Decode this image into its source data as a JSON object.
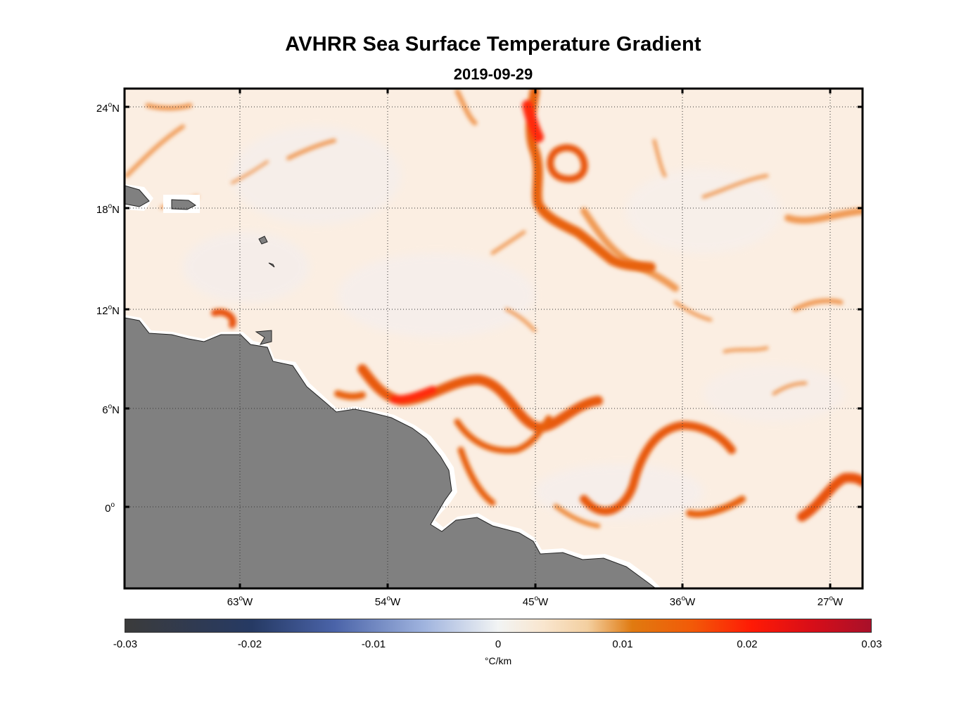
{
  "title": "AVHRR Sea Surface Temperature Gradient",
  "subtitle": "2019-09-29",
  "map": {
    "lon_labels": [
      {
        "value": "63",
        "hemi": "W"
      },
      {
        "value": "54",
        "hemi": "W"
      },
      {
        "value": "45",
        "hemi": "W"
      },
      {
        "value": "36",
        "hemi": "W"
      },
      {
        "value": "27",
        "hemi": "W"
      }
    ],
    "lat_labels": [
      {
        "value": "24",
        "hemi": "N"
      },
      {
        "value": "18",
        "hemi": "N"
      },
      {
        "value": "12",
        "hemi": "N"
      },
      {
        "value": "6",
        "hemi": "N"
      },
      {
        "value": "0",
        "hemi": ""
      }
    ],
    "degree_symbol": "o",
    "land_color": "#808080",
    "ocean_color": "#fbeee2",
    "front_color": "#e8600a",
    "strong_front_color": "#ff2a10",
    "grid": "dotted"
  },
  "colorbar": {
    "tick_labels": [
      "-0.03",
      "-0.02",
      "-0.01",
      "0",
      "0.01",
      "0.02",
      "0.03"
    ],
    "units": "°C/km",
    "colors": [
      "#3b3b3b",
      "#263a64",
      "#6f86c2",
      "#f2f4f4",
      "#f9e6cf",
      "#e07a10",
      "#ff1a05",
      "#a8102a"
    ]
  }
}
